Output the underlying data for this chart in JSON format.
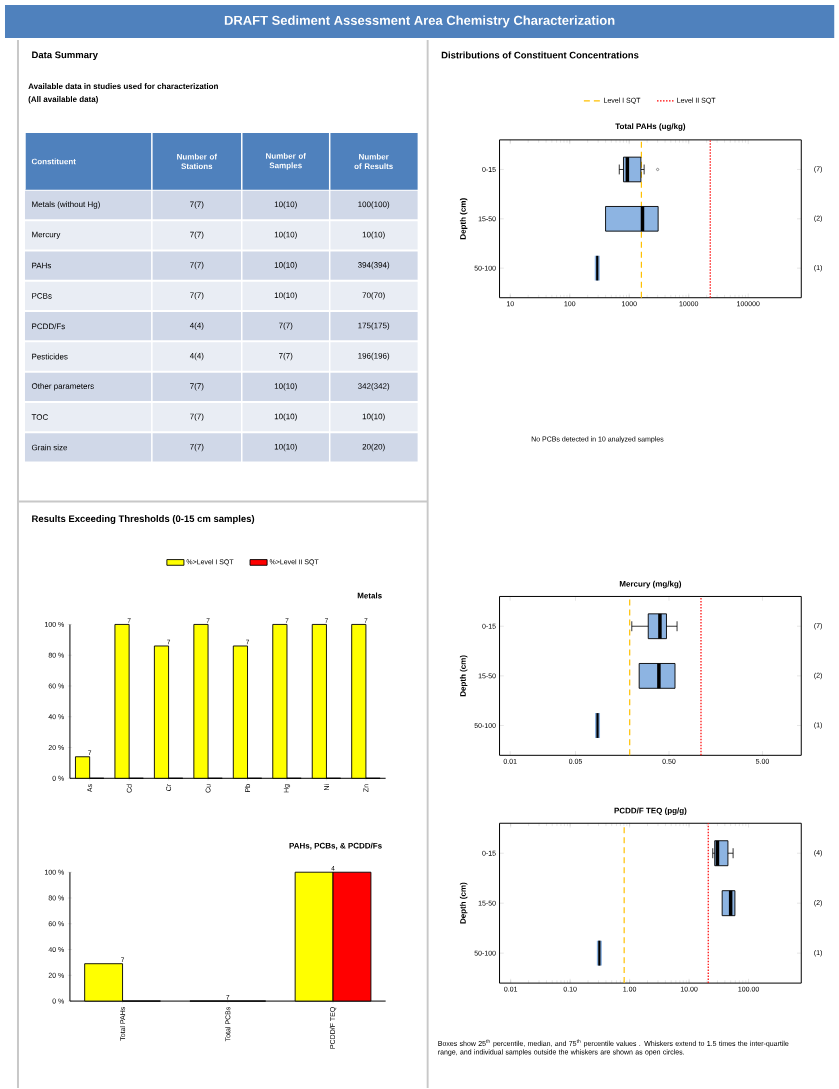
{
  "chart_data": [
    {
      "type": "other",
      "title": "DRAFT Sediment Assessment Area Chemistry Characterization",
      "subtitle": "Data Summary",
      "annotations": [
        "Available data in studies used for characterization",
        "(All available data)"
      ],
      "categories": [
        "Constituent",
        "Number of Stations",
        "Number of Samples",
        "Number of Results"
      ],
      "y_categories": [
        "Metals (without Hg)",
        "Mercury",
        "PAHs",
        "PCBs",
        "PCDD/Fs",
        "Pesticides",
        "Other parameters",
        "TOC",
        "Grain size"
      ],
      "cell_labels": [
        [
          "7(7)",
          "10(10)",
          "100(100)"
        ],
        [
          "7(7)",
          "10(10)",
          "10(10)"
        ],
        [
          "7(7)",
          "10(10)",
          "394(394)"
        ],
        [
          "7(7)",
          "10(10)",
          "70(70)"
        ],
        [
          "4(4)",
          "7(7)",
          "175(175)"
        ],
        [
          "4(4)",
          "7(7)",
          "196(196)"
        ],
        [
          "7(7)",
          "10(10)",
          "342(342)"
        ],
        [
          "7(7)",
          "10(10)",
          "10(10)"
        ],
        [
          "7(7)",
          "10(10)",
          "20(20)"
        ]
      ]
    },
    {
      "type": "box",
      "orientation": "horizontal",
      "log": "x",
      "subtitle": "Distributions of Constituent Concentrations",
      "title": "Total PAHs (ug/kg)",
      "ylabel": "Depth (cm)",
      "categories": [
        "0-15",
        "15-50",
        "50-100"
      ],
      "y2_categories": [
        "(7)",
        "(2)",
        "(1)"
      ],
      "series": [
        {
          "color": "#8db4e2",
          "boxes": [
            {
              "low": 680,
              "q1": 800,
              "median": 930,
              "q3": 1570,
              "high": 1780,
              "outliers": [
                3000
              ]
            },
            {
              "low": 400,
              "q1": 400,
              "median": 1670,
              "q3": 3060,
              "high": 3060
            },
            {
              "low": 290,
              "q1": 290,
              "median": 290,
              "q3": 290,
              "high": 290
            }
          ]
        }
      ],
      "xlim": [
        6.6,
        780000
      ],
      "xticks": [
        10,
        100,
        1000,
        10000,
        100000
      ],
      "ref_lines": [
        {
          "axis": "x",
          "value": 1600,
          "label": "Level I SQT",
          "color": "#ffc000",
          "line_style": "dashed"
        },
        {
          "axis": "x",
          "value": 23000,
          "label": "Level II SQT",
          "color": "#ff0000",
          "line_style": "dotted"
        }
      ],
      "legend": "top"
    },
    {
      "type": "other",
      "annotations": [
        "No PCBs detected in 10 analyzed samples"
      ]
    },
    {
      "type": "bar",
      "subtitle": "Results Exceeding Thresholds (0-15 cm samples)",
      "title": "Metals",
      "categories": [
        "As",
        "Cd",
        "Cr",
        "Cu",
        "Pb",
        "Hg",
        "Ni",
        "Zn"
      ],
      "series": [
        {
          "name": "%>Level I SQT",
          "color": "#ffff00",
          "values": [
            14,
            100,
            86,
            100,
            86,
            100,
            100,
            100
          ]
        },
        {
          "name": "%>Level II SQT",
          "color": "#ff0000",
          "values": [
            0,
            0,
            0,
            0,
            0,
            0,
            0,
            0
          ]
        }
      ],
      "ylim": [
        0,
        100
      ],
      "yticks": [
        {
          "value": 0,
          "label": "0 %"
        },
        {
          "value": 20,
          "label": "20 %"
        },
        {
          "value": 40,
          "label": "40 %"
        },
        {
          "value": 60,
          "label": "60 %"
        },
        {
          "value": 80,
          "label": "80 %"
        },
        {
          "value": 100,
          "label": "100 %"
        }
      ],
      "annotations": [
        {
          "text": "7",
          "x": "As",
          "y": 14
        },
        {
          "text": "7",
          "x": "Cd",
          "y": 100
        },
        {
          "text": "7",
          "x": "Cr",
          "y": 86
        },
        {
          "text": "7",
          "x": "Cu",
          "y": 100
        },
        {
          "text": "7",
          "x": "Pb",
          "y": 86
        },
        {
          "text": "7",
          "x": "Hg",
          "y": 100
        },
        {
          "text": "7",
          "x": "Ni",
          "y": 100
        },
        {
          "text": "7",
          "x": "Zn",
          "y": 100
        }
      ],
      "legend": "top"
    },
    {
      "type": "bar",
      "title": "PAHs, PCBs, & PCDD/Fs",
      "categories": [
        "Total PAHs",
        "Total PCBs",
        "PCDD/F TEQ"
      ],
      "series": [
        {
          "color": "#ffff00",
          "values": [
            29,
            0,
            100
          ]
        },
        {
          "color": "#ff0000",
          "values": [
            0,
            0,
            100
          ]
        }
      ],
      "ylim": [
        0,
        100
      ],
      "yticks": [
        {
          "value": 0,
          "label": "0 %"
        },
        {
          "value": 20,
          "label": "20 %"
        },
        {
          "value": 40,
          "label": "40 %"
        },
        {
          "value": 60,
          "label": "60 %"
        },
        {
          "value": 80,
          "label": "80 %"
        },
        {
          "value": 100,
          "label": "100 %"
        }
      ],
      "annotations": [
        {
          "text": "7",
          "x": "Total PAHs",
          "y": 29
        },
        {
          "text": "7",
          "x": "Total PCBs",
          "y": 0
        },
        {
          "text": "4",
          "x": "PCDD/F TEQ",
          "y": 100
        }
      ]
    },
    {
      "type": "box",
      "orientation": "horizontal",
      "log": "x",
      "title": "Mercury (mg/kg)",
      "ylabel": "Depth (cm)",
      "categories": [
        "0-15",
        "15-50",
        "50-100"
      ],
      "y2_categories": [
        "(7)",
        "(2)",
        "(1)"
      ],
      "series": [
        {
          "color": "#8db4e2",
          "boxes": [
            {
              "low": 0.2,
              "q1": 0.3,
              "median": 0.4,
              "q3": 0.47,
              "high": 0.61
            },
            {
              "low": 0.24,
              "q1": 0.24,
              "median": 0.39,
              "q3": 0.58,
              "high": 0.58
            },
            {
              "low": 0.086,
              "q1": 0.086,
              "median": 0.086,
              "q3": 0.086,
              "high": 0.086
            }
          ]
        }
      ],
      "xlim": [
        0.0077,
        13
      ],
      "xticks": [
        0.01,
        0.05,
        {
          "value": 0.5,
          "label": "0.50"
        },
        {
          "value": 5,
          "label": "5.00"
        }
      ],
      "ref_lines": [
        {
          "axis": "x",
          "value": 0.19,
          "color": "#ffc000",
          "line_style": "dashed"
        },
        {
          "axis": "x",
          "value": 1.1,
          "color": "#ff0000",
          "line_style": "dotted"
        }
      ]
    },
    {
      "type": "box",
      "orientation": "horizontal",
      "log": "x",
      "title": "PCDD/F TEQ (pg/g)",
      "ylabel": "Depth (cm)",
      "categories": [
        "0-15",
        "15-50",
        "50-100"
      ],
      "y2_categories": [
        "(4)",
        "(2)",
        "(1)"
      ],
      "series": [
        {
          "color": "#8db4e2",
          "boxes": [
            {
              "low": 25,
              "q1": 27,
              "median": 30,
              "q3": 45,
              "high": 55
            },
            {
              "low": 36,
              "q1": 36,
              "median": 50,
              "q3": 59,
              "high": 59
            },
            {
              "low": 0.31,
              "q1": 0.31,
              "median": 0.31,
              "q3": 0.31,
              "high": 0.31
            }
          ]
        }
      ],
      "xlim": [
        0.0065,
        770
      ],
      "xticks": [
        0.01,
        {
          "value": 0.1,
          "label": "0.10"
        },
        {
          "value": 1,
          "label": "1.00"
        },
        {
          "value": 10,
          "label": "10.00"
        },
        {
          "value": 100,
          "label": "100.00"
        }
      ],
      "ref_lines": [
        {
          "axis": "x",
          "value": 0.81,
          "color": "#ffc000",
          "line_style": "dashed"
        },
        {
          "axis": "x",
          "value": 21,
          "color": "#ff0000",
          "line_style": "dotted"
        }
      ],
      "annotations": [
        "Boxes show 25$^{th}$ percentile, median, and 75$^{th}$ percentile values . Whiskers extend to 1.5 times the inter-quartile range, and individual samples outside the whiskers are shown as open circles."
      ]
    }
  ]
}
